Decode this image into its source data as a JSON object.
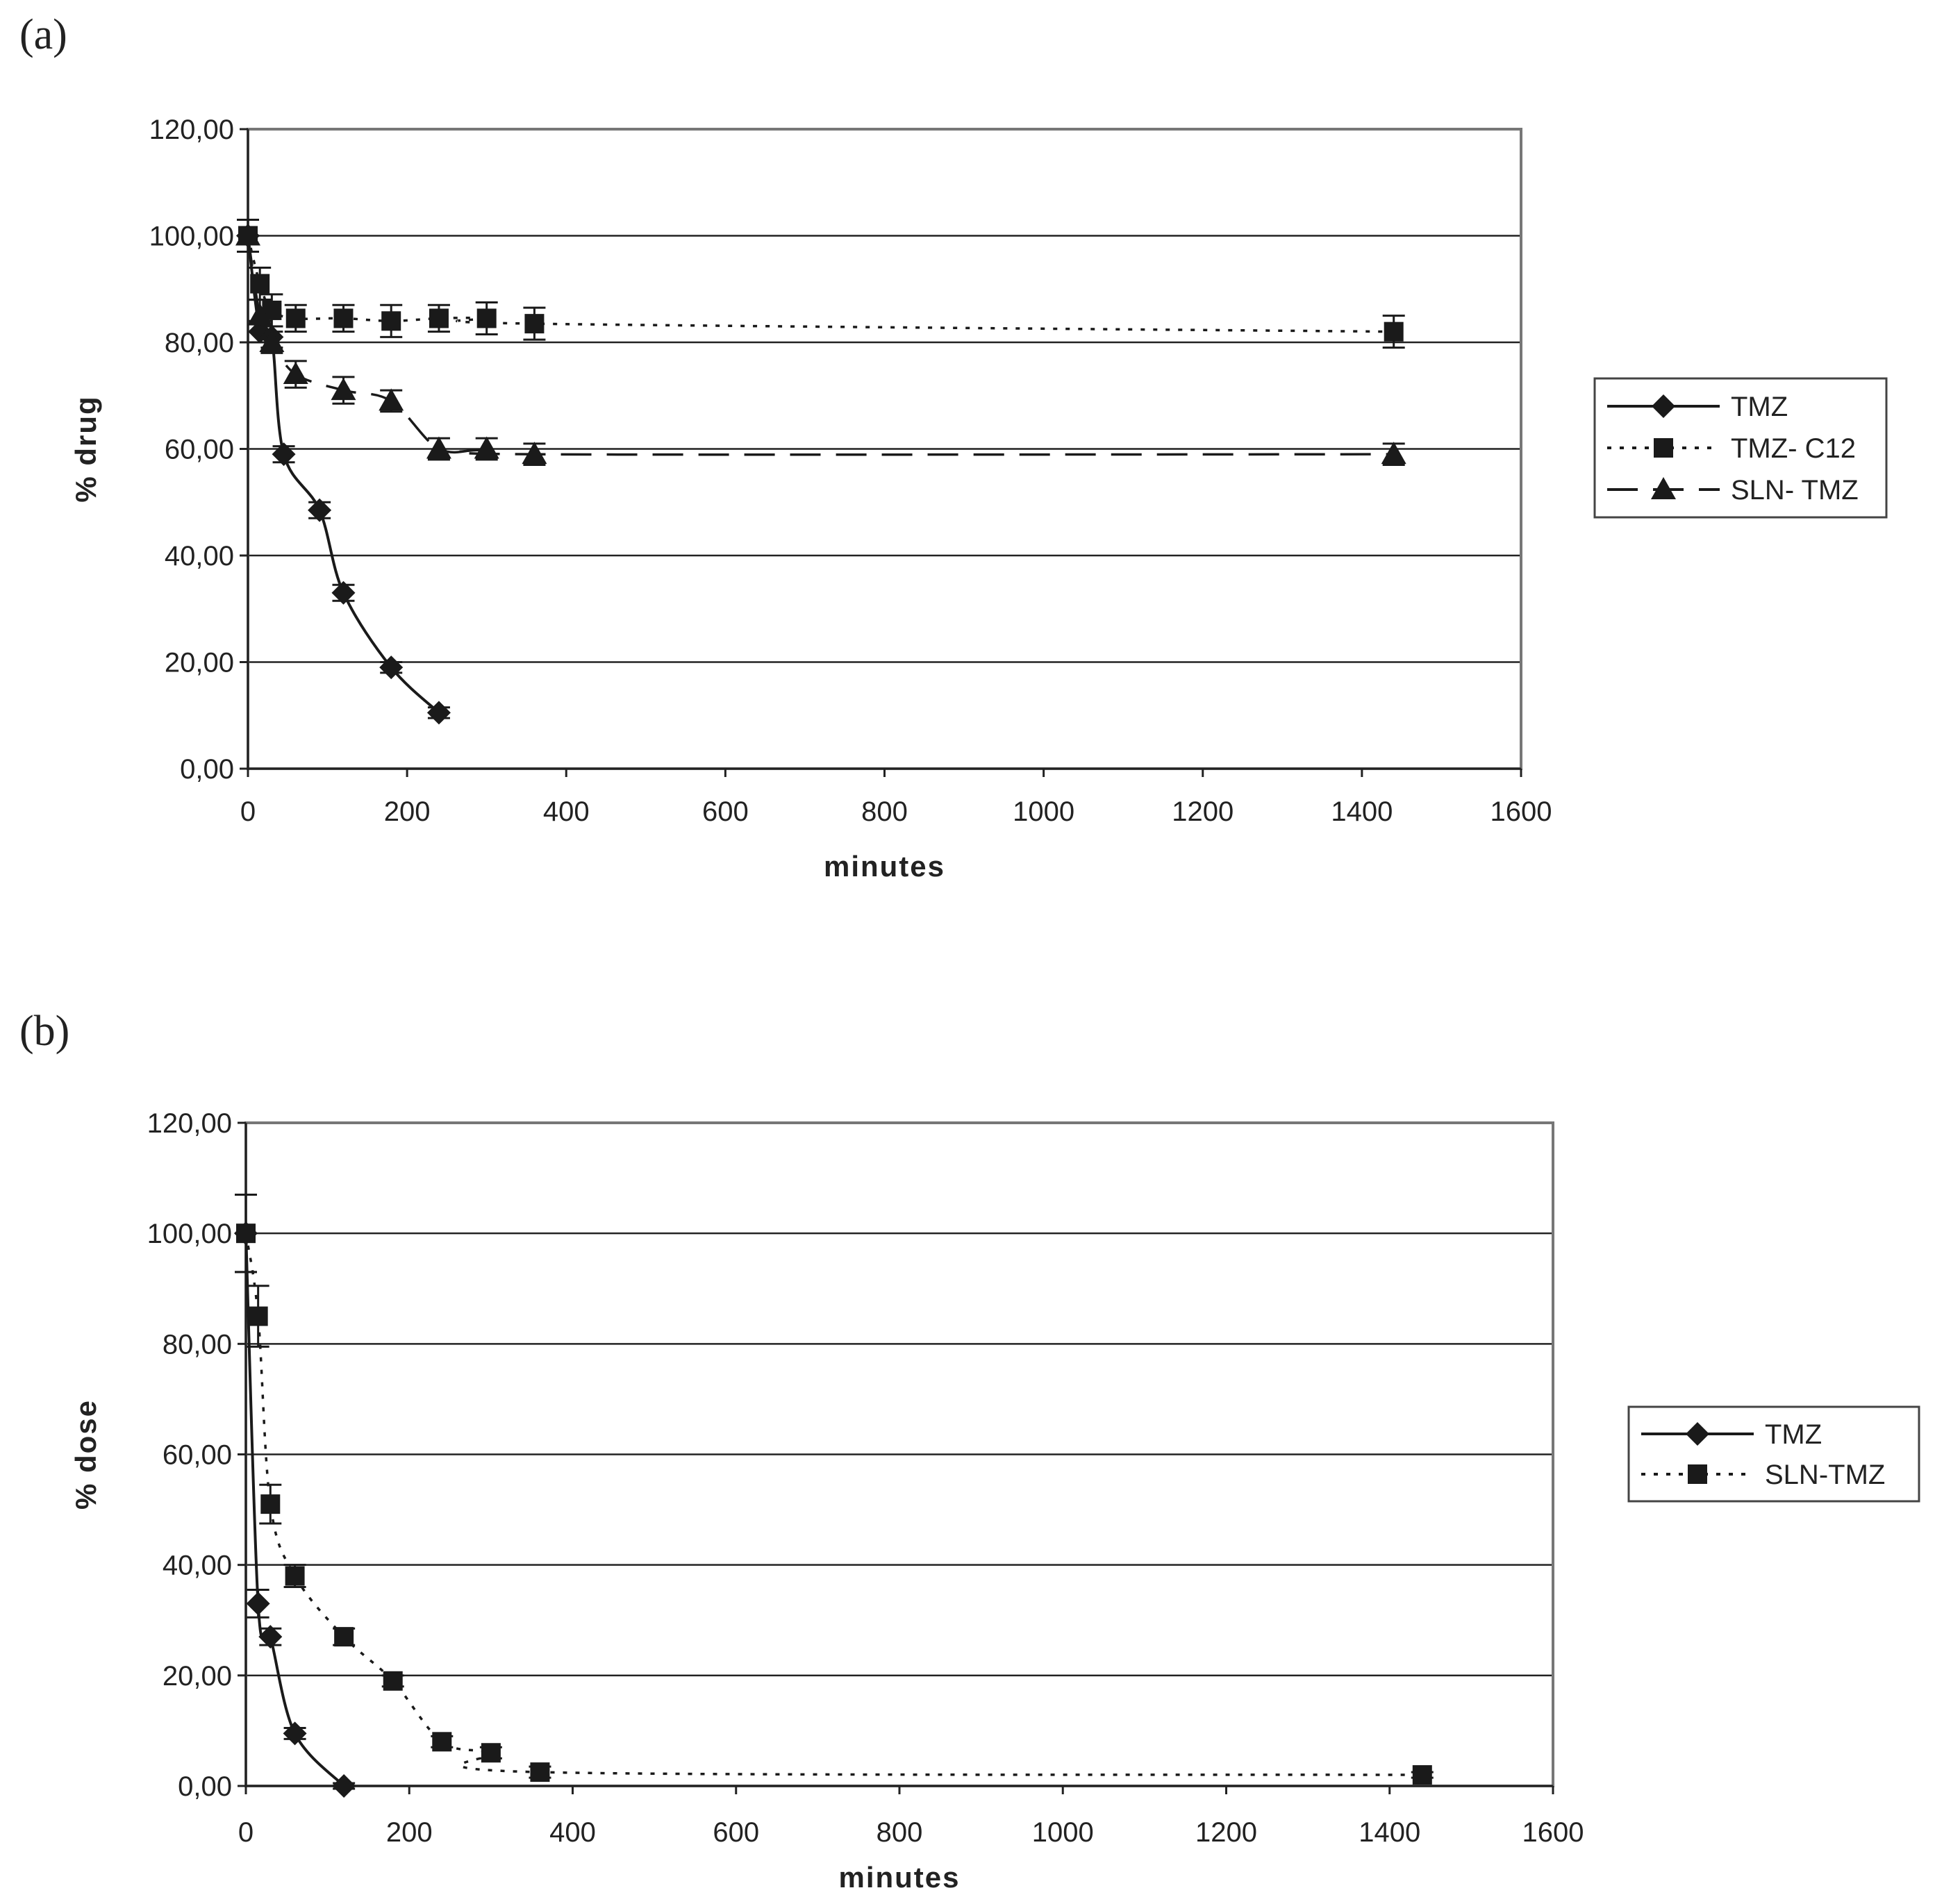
{
  "chart_data": [
    {
      "type": "line",
      "panel_label": "(a)",
      "xlabel": "minutes",
      "ylabel": "% drug",
      "xlim": [
        0,
        1600
      ],
      "ylim": [
        0,
        120
      ],
      "x_ticks": [
        0,
        200,
        400,
        600,
        800,
        1000,
        1200,
        1400,
        1600
      ],
      "x_tick_labels": [
        "0",
        "200",
        "400",
        "600",
        "800",
        "1000",
        "1200",
        "1400",
        "1600"
      ],
      "y_ticks": [
        0,
        20,
        40,
        60,
        80,
        100,
        120
      ],
      "y_tick_labels": [
        "0,00",
        "20,00",
        "40,00",
        "60,00",
        "80,00",
        "100,00",
        "120,00"
      ],
      "grid": "horizontal",
      "legend_position": "right",
      "series": [
        {
          "name": "TMZ",
          "marker": "diamond",
          "line": "solid",
          "x": [
            0,
            15,
            30,
            45,
            90,
            120,
            180,
            240
          ],
          "y": [
            100,
            82,
            81,
            59,
            48.5,
            33,
            19,
            10.5
          ],
          "err": [
            3,
            2,
            2,
            1.5,
            1.5,
            1.5,
            1,
            1
          ]
        },
        {
          "name": "TMZ- C12",
          "marker": "square",
          "line": "dotted",
          "x": [
            0,
            15,
            30,
            60,
            120,
            180,
            240,
            300,
            360,
            1440
          ],
          "y": [
            100,
            91,
            86,
            84.5,
            84.5,
            84,
            84.5,
            84.5,
            83.5,
            82
          ],
          "err": [
            3,
            3,
            3,
            2.5,
            2.5,
            3,
            2.5,
            3,
            3,
            3
          ]
        },
        {
          "name": "SLN- TMZ",
          "marker": "triangle",
          "line": "dashed",
          "x": [
            0,
            15,
            30,
            60,
            120,
            180,
            240,
            300,
            360,
            1440
          ],
          "y": [
            100,
            85,
            80,
            74,
            71,
            69,
            60,
            60,
            59,
            59
          ],
          "err": [
            3,
            3,
            2,
            2.5,
            2.5,
            2,
            2,
            2,
            2,
            2
          ]
        }
      ]
    },
    {
      "type": "line",
      "panel_label": "(b)",
      "xlabel": "minutes",
      "ylabel": "% dose",
      "xlim": [
        0,
        1600
      ],
      "ylim": [
        0,
        120
      ],
      "x_ticks": [
        0,
        200,
        400,
        600,
        800,
        1000,
        1200,
        1400,
        1600
      ],
      "x_tick_labels": [
        "0",
        "200",
        "400",
        "600",
        "800",
        "1000",
        "1200",
        "1400",
        "1600"
      ],
      "y_ticks": [
        0,
        20,
        40,
        60,
        80,
        100,
        120
      ],
      "y_tick_labels": [
        "0,00",
        "20,00",
        "40,00",
        "60,00",
        "80,00",
        "100,00",
        "120,00"
      ],
      "grid": "horizontal",
      "legend_position": "right",
      "series": [
        {
          "name": "TMZ",
          "marker": "diamond",
          "line": "solid",
          "x": [
            0,
            15,
            30,
            60,
            120
          ],
          "y": [
            100,
            33,
            27,
            9.5,
            0
          ],
          "err": [
            7,
            2.5,
            1.5,
            1,
            0.5
          ]
        },
        {
          "name": "SLN-TMZ",
          "marker": "square",
          "line": "dotted",
          "x": [
            0,
            15,
            30,
            60,
            120,
            180,
            240,
            300,
            360,
            1440
          ],
          "y": [
            100,
            85,
            51,
            38,
            27,
            19,
            8,
            6,
            2.5,
            2
          ],
          "err": [
            7,
            5.5,
            3.5,
            2,
            1.5,
            1,
            1,
            1,
            1,
            0.5
          ]
        }
      ]
    }
  ]
}
